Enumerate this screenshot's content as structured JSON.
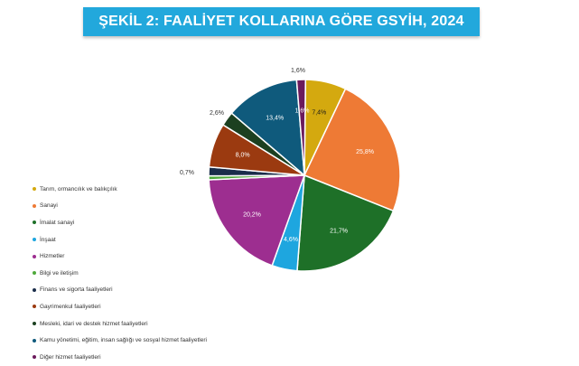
{
  "title": "ŞEKİL 2: FAALİYET KOLLARINA GÖRE GSYİH, 2024",
  "colors": {
    "banner": "#22a8dc",
    "title_text": "#ffffff"
  },
  "chart_data": {
    "type": "pie",
    "title": "ŞEKİL 2: FAALİYET KOLLARINA GÖRE GSYİH, 2024",
    "legend_position": "left",
    "slices": [
      {
        "name": "Tarım, ormancılık ve balıkçılık",
        "value": 7.4,
        "label": "7,4%",
        "color": "#d4a90f"
      },
      {
        "name": "Sanayi",
        "value": 25.8,
        "label": "25,8%",
        "color": "#ee7a35"
      },
      {
        "name": "İmalat sanayi",
        "value": 21.7,
        "label": "21,7%",
        "color": "#1e7028"
      },
      {
        "name": "İnşaat",
        "value": 4.6,
        "label": "4,6%",
        "color": "#1ea6df"
      },
      {
        "name": "Hizmetler",
        "value": 20.2,
        "label": "20,2%",
        "color": "#9d2e90"
      },
      {
        "name": "Bilgi ve iletişim",
        "value": 0.7,
        "label": "0,7%",
        "color": "#4ea93b"
      },
      {
        "name": "Finans ve sigorta faaliyetleri",
        "value": 1.6,
        "label": "1,6%",
        "color": "#1a2d4a"
      },
      {
        "name": "Gayrimenkul faaliyetleri",
        "value": 8.0,
        "label": "8,0%",
        "color": "#9b3a10"
      },
      {
        "name": "Mesleki, idari ve destek hizmet faaliyetleri",
        "value": 2.6,
        "label": "2,6%",
        "color": "#1c4020"
      },
      {
        "name": "Kamu yönetimi, eğitim, insan sağlığı ve sosyal hizmet faaliyetleri",
        "value": 13.4,
        "label": "13,4%",
        "color": "#0f5a7c"
      },
      {
        "name": "Diğer hizmet faaliyetleri",
        "value": 1.6,
        "label": "1,6%",
        "color": "#6b1a5c"
      }
    ]
  }
}
